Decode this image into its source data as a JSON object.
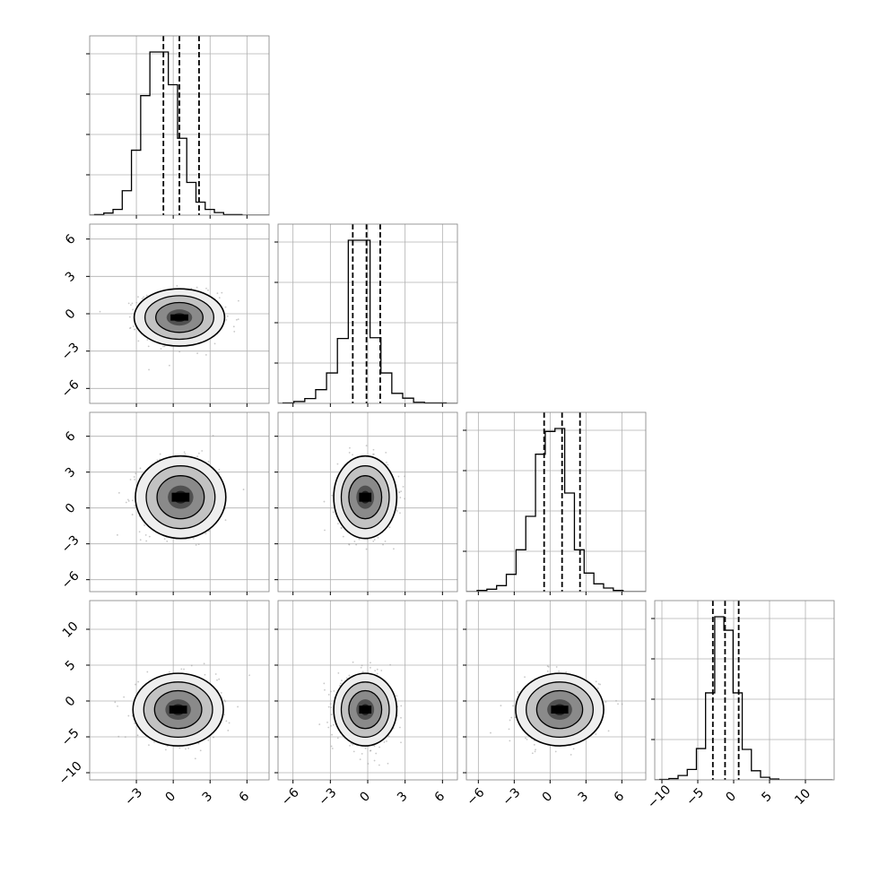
{
  "chart_data": {
    "type": "corner",
    "grid": true,
    "style": {
      "axis_color": "#808080",
      "grid_color": "#b0b0b0",
      "line_color": "#000000",
      "scatter_color": "#9a9a9a",
      "density_colors": [
        "#eeeeee",
        "#c2c2c2",
        "#8a8a8a",
        "#505050",
        "#1e1e1e",
        "#000000"
      ]
    },
    "variables": [
      {
        "index": 0,
        "range": [
          -6.8,
          7.8
        ],
        "ticks": [
          -3,
          0,
          3,
          6
        ],
        "tick_labels": [
          "−3",
          "0",
          "3",
          "6"
        ],
        "quantiles": [
          -0.8,
          0.5,
          2.1
        ],
        "hist_bins": [
          -6.4,
          5.6
        ],
        "hist_counts": [
          1,
          4,
          11,
          47,
          125,
          230,
          314,
          314,
          251,
          148,
          63,
          25,
          11,
          5,
          1,
          1
        ]
      },
      {
        "index": 1,
        "range": [
          -7.2,
          7.2
        ],
        "ticks": [
          -6,
          -3,
          0,
          3,
          6
        ],
        "tick_labels": [
          "−6",
          "−3",
          "0",
          "3",
          "6"
        ],
        "quantiles": [
          -1.2,
          -0.1,
          1.0
        ],
        "hist_bins": [
          -6.8,
          6.3
        ],
        "hist_counts": [
          1,
          5,
          13,
          37,
          82,
          175,
          440,
          440,
          177,
          82,
          27,
          14,
          3,
          1,
          1
        ]
      },
      {
        "index": 2,
        "range": [
          -7.0,
          8.0
        ],
        "ticks": [
          -6,
          -3,
          0,
          3,
          6
        ],
        "tick_labels": [
          "−6",
          "−3",
          "0",
          "3",
          "6"
        ],
        "quantiles": [
          -0.5,
          1.0,
          2.5
        ],
        "hist_bins": [
          -6.1,
          6.1
        ],
        "hist_counts": [
          2,
          4,
          10,
          29,
          70,
          126,
          230,
          268,
          273,
          165,
          70,
          31,
          13,
          6,
          2
        ]
      },
      {
        "index": 3,
        "range": [
          -11.0,
          14.0
        ],
        "ticks": [
          -10,
          -5,
          0,
          5,
          10
        ],
        "tick_labels": [
          "−10",
          "−5",
          "0",
          "5",
          "10"
        ],
        "quantiles": [
          -2.9,
          -1.2,
          0.7
        ],
        "hist_bins": [
          -10.3,
          6.3
        ],
        "hist_counts": [
          1,
          3,
          10,
          24,
          72,
          200,
          375,
          344,
          200,
          70,
          21,
          6,
          2
        ]
      }
    ],
    "pair_grid": {
      "y_ticks": {
        "1": {
          "ticks": [
            -6,
            -3,
            0,
            3,
            6
          ],
          "labels": [
            "−6",
            "−3",
            "0",
            "3",
            "6"
          ]
        },
        "2": {
          "ticks": [
            -6,
            -3,
            0,
            3,
            6
          ],
          "labels": [
            "−6",
            "−3",
            "0",
            "3",
            "6"
          ]
        },
        "3": {
          "ticks": [
            -10,
            -5,
            0,
            5,
            10
          ],
          "labels": [
            "−10",
            "−5",
            "0",
            "5",
            "10"
          ]
        }
      },
      "pairs": [
        {
          "row": 1,
          "col": 0,
          "center": [
            0.5,
            -0.3
          ],
          "spread": [
            1.6,
            1.0
          ],
          "contour_scale": [
            1.0,
            1.0
          ]
        },
        {
          "row": 2,
          "col": 0,
          "center": [
            0.6,
            0.9
          ],
          "spread": [
            1.6,
            1.5
          ],
          "contour_scale": [
            1.0,
            1.0
          ]
        },
        {
          "row": 2,
          "col": 1,
          "center": [
            -0.2,
            0.9
          ],
          "spread": [
            1.1,
            1.5
          ],
          "contour_scale": [
            1.0,
            1.0
          ]
        },
        {
          "row": 3,
          "col": 0,
          "center": [
            0.4,
            -1.2
          ],
          "spread": [
            1.6,
            2.2
          ],
          "contour_scale": [
            1.0,
            1.0
          ]
        },
        {
          "row": 3,
          "col": 1,
          "center": [
            -0.2,
            -1.2
          ],
          "spread": [
            1.1,
            2.2
          ],
          "contour_scale": [
            1.0,
            1.0
          ]
        },
        {
          "row": 3,
          "col": 2,
          "center": [
            0.8,
            -1.2
          ],
          "spread": [
            1.6,
            2.2
          ],
          "contour_scale": [
            1.0,
            1.0
          ]
        }
      ]
    }
  }
}
